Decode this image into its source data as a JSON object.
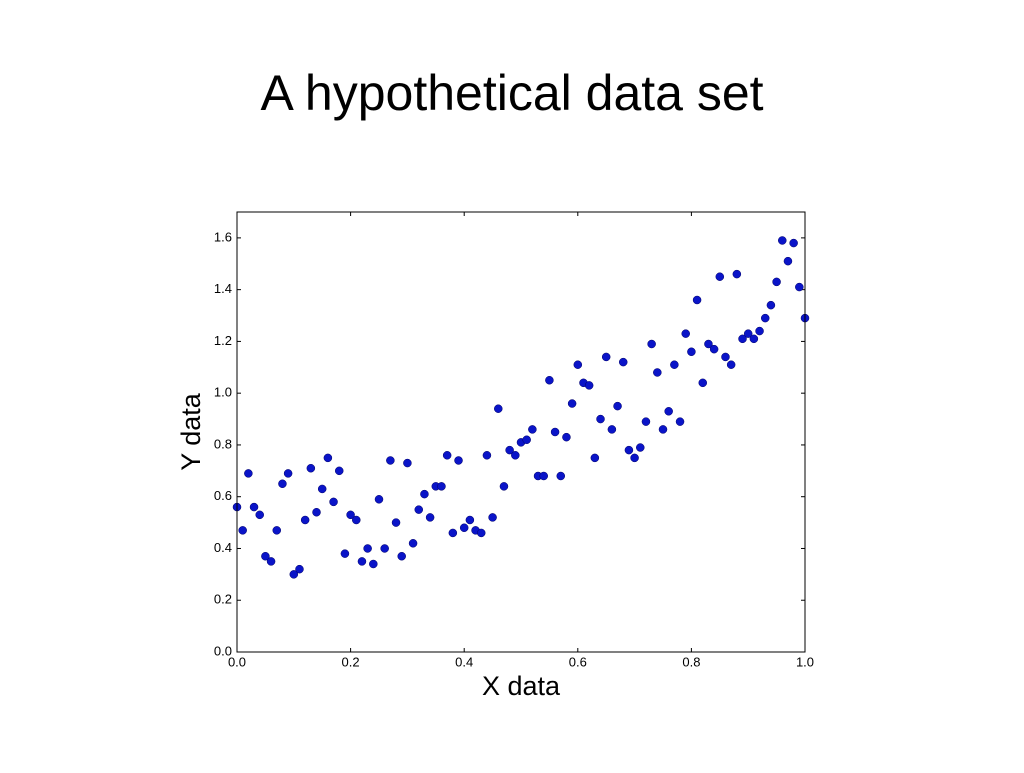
{
  "chart_data": {
    "type": "scatter",
    "title": "A hypothetical data set",
    "xlabel": "X data",
    "ylabel": "Y data",
    "color": "#0a14c8",
    "x": [
      0,
      0.01,
      0.02,
      0.03,
      0.04,
      0.05,
      0.06,
      0.07,
      0.08,
      0.09,
      0.1,
      0.11,
      0.12,
      0.13,
      0.14,
      0.15,
      0.16,
      0.17,
      0.18,
      0.19,
      0.2,
      0.21,
      0.22,
      0.23,
      0.24,
      0.25,
      0.26,
      0.27,
      0.28,
      0.29,
      0.3,
      0.31,
      0.32,
      0.33,
      0.34,
      0.35,
      0.36,
      0.37,
      0.38,
      0.39,
      0.4,
      0.41,
      0.42,
      0.43,
      0.44,
      0.45,
      0.46,
      0.47,
      0.48,
      0.49,
      0.5,
      0.51,
      0.52,
      0.53,
      0.54,
      0.55,
      0.56,
      0.57,
      0.58,
      0.59,
      0.6,
      0.61,
      0.62,
      0.63,
      0.64,
      0.65,
      0.66,
      0.67,
      0.68,
      0.69,
      0.7,
      0.71,
      0.72,
      0.73,
      0.74,
      0.75,
      0.76,
      0.77,
      0.78,
      0.79,
      0.8,
      0.81,
      0.82,
      0.83,
      0.84,
      0.85,
      0.86,
      0.87,
      0.88,
      0.89,
      0.9,
      0.91,
      0.92,
      0.93,
      0.94,
      0.95,
      0.96,
      0.97,
      0.98,
      0.99,
      1.0
    ],
    "values": [
      0.56,
      0.47,
      0.69,
      0.56,
      0.53,
      0.37,
      0.35,
      0.47,
      0.65,
      0.69,
      0.3,
      0.32,
      0.51,
      0.71,
      0.54,
      0.63,
      0.75,
      0.58,
      0.7,
      0.38,
      0.53,
      0.51,
      0.35,
      0.4,
      0.34,
      0.59,
      0.4,
      0.74,
      0.5,
      0.37,
      0.73,
      0.42,
      0.55,
      0.61,
      0.52,
      0.64,
      0.64,
      0.76,
      0.46,
      0.74,
      0.48,
      0.51,
      0.47,
      0.46,
      0.76,
      0.52,
      0.94,
      0.64,
      0.78,
      0.76,
      0.81,
      0.82,
      0.86,
      0.68,
      0.68,
      1.05,
      0.85,
      0.68,
      0.83,
      0.96,
      1.11,
      1.04,
      1.03,
      0.75,
      0.9,
      1.14,
      0.86,
      0.95,
      1.12,
      0.78,
      0.75,
      0.79,
      0.89,
      1.19,
      1.08,
      0.86,
      0.93,
      1.11,
      0.89,
      1.23,
      1.16,
      1.36,
      1.04,
      1.19,
      1.17,
      1.45,
      1.14,
      1.11,
      1.46,
      1.21,
      1.23,
      1.21,
      1.24,
      1.29,
      1.34,
      1.43,
      1.59,
      1.51,
      1.58,
      1.41,
      1.29
    ],
    "xlim": [
      0,
      1
    ],
    "ylim": [
      0,
      1.7
    ],
    "xticks": [
      {
        "value": 0,
        "label": "0.0"
      },
      0.2,
      0.4,
      0.6,
      0.8,
      {
        "value": 1,
        "label": "1.0"
      }
    ],
    "yticks": [
      {
        "value": 0,
        "label": "0.0"
      },
      0.2,
      0.4,
      0.6,
      0.8,
      {
        "value": 1,
        "label": "1.0"
      },
      1.2,
      1.4,
      1.6
    ]
  }
}
